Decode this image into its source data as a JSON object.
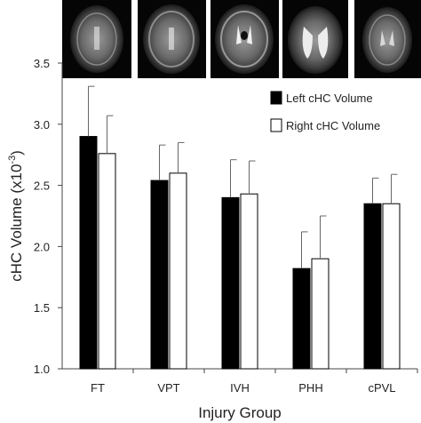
{
  "chart_data": {
    "type": "bar",
    "categories": [
      "FT",
      "VPT",
      "IVH",
      "PHH",
      "cPVL"
    ],
    "series": [
      {
        "name": "Left cHC Volume",
        "color": "#000000",
        "values": [
          2.9,
          2.54,
          2.4,
          1.82,
          2.35
        ],
        "errors": [
          0.41,
          0.29,
          0.31,
          0.3,
          0.21
        ]
      },
      {
        "name": "Right cHC Volume",
        "color": "#ffffff",
        "values": [
          2.76,
          2.6,
          2.43,
          1.9,
          2.35
        ],
        "errors": [
          0.31,
          0.25,
          0.27,
          0.35,
          0.24
        ]
      }
    ],
    "xlabel": "Injury Group",
    "ylabel_main": "cHC Volume (x10",
    "ylabel_sup": "-3",
    "ylabel_end": ")",
    "ylim": [
      1.0,
      3.5
    ],
    "yticks": [
      "1.0",
      "1.5",
      "2.0",
      "2.5",
      "3.0",
      "3.5"
    ],
    "grid": false,
    "legend_position": "top-right",
    "thumbnails": "brain-mri-images"
  }
}
